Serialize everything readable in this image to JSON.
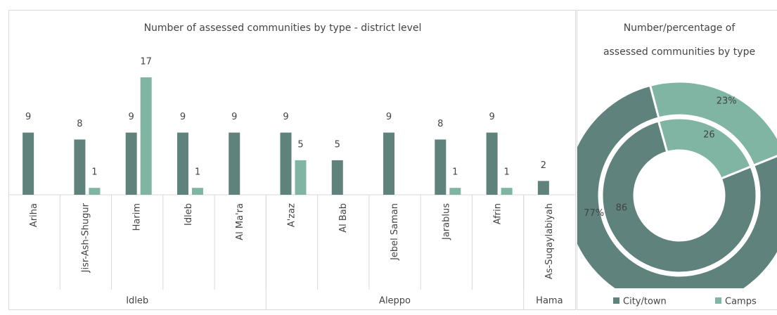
{
  "chart_data": [
    {
      "type": "bar",
      "title": "Number of assessed communities by type - district level",
      "groups": [
        {
          "name": "Idleb",
          "size": 5
        },
        {
          "name": "Aleppo",
          "size": 5
        },
        {
          "name": "Hama",
          "size": 1
        }
      ],
      "categories": [
        "Ariha",
        "Jisr-Ash-Shugur",
        "Harim",
        "Idleb",
        "Al Ma'ra",
        "A'zaz",
        "Al Bab",
        "Jebel Saman",
        "Jarablus",
        "Afrin",
        "As-Suqaylabiyah"
      ],
      "series": [
        {
          "color": "#5f827c",
          "values": [
            9,
            8,
            9,
            9,
            9,
            9,
            5,
            9,
            8,
            9,
            2
          ]
        },
        {
          "color": "#7fb5a2",
          "values": [
            null,
            1,
            17,
            1,
            null,
            5,
            null,
            null,
            1,
            1,
            null
          ]
        }
      ]
    },
    {
      "type": "donut",
      "title": [
        "Number/percentage of",
        "assessed communities by type"
      ],
      "categories": [
        "City/town",
        "Camps"
      ],
      "colors": [
        "#5f827c",
        "#7fb5a2"
      ],
      "series": [
        {
          "values": [
            86,
            26
          ]
        },
        {
          "values": [
            77,
            23
          ],
          "value_labels": [
            "77%",
            "23%"
          ]
        }
      ],
      "legend": "bottom"
    }
  ]
}
